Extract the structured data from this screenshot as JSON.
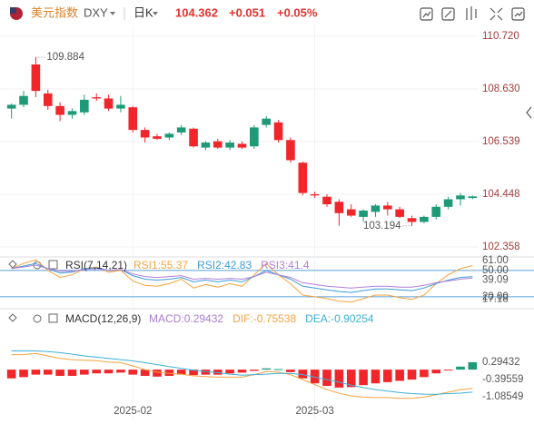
{
  "header": {
    "name": "美元指数",
    "code": "DXY",
    "period": "日K",
    "price": "104.362",
    "change": "+0.051",
    "percent": "+0.05%"
  },
  "chart_data": [
    {
      "type": "candlestick",
      "categories": [
        null,
        null,
        null,
        null,
        null,
        null,
        null,
        null,
        null,
        null,
        "2025-02",
        null,
        null,
        null,
        null,
        null,
        null,
        null,
        null,
        null,
        null,
        null,
        null,
        null,
        null,
        "2025-03",
        null,
        null,
        null,
        null,
        null,
        null,
        null,
        null,
        null,
        null,
        null,
        null,
        null
      ],
      "open": [
        107.85,
        108.0,
        109.6,
        108.45,
        107.95,
        107.6,
        107.7,
        108.3,
        108.25,
        107.85,
        107.9,
        107.0,
        106.75,
        106.7,
        106.9,
        107.05,
        106.3,
        106.55,
        106.3,
        106.45,
        106.35,
        107.2,
        107.3,
        106.6,
        105.7,
        104.45,
        104.35,
        104.15,
        103.85,
        103.55,
        103.75,
        104.0,
        103.85,
        103.5,
        103.35,
        103.55,
        103.95,
        104.25,
        104.3
      ],
      "high": [
        108.05,
        108.55,
        109.884,
        108.6,
        108.1,
        107.85,
        108.4,
        108.45,
        108.4,
        108.35,
        107.95,
        107.1,
        106.85,
        106.9,
        107.2,
        107.1,
        106.55,
        106.65,
        106.6,
        106.55,
        107.2,
        107.55,
        107.4,
        106.7,
        105.75,
        104.55,
        104.45,
        104.25,
        104.05,
        103.85,
        104.05,
        104.15,
        103.95,
        103.6,
        103.6,
        104.05,
        104.35,
        104.5,
        104.4
      ],
      "low": [
        107.45,
        107.9,
        108.3,
        107.8,
        107.35,
        107.45,
        107.6,
        108.15,
        107.75,
        107.7,
        106.9,
        106.5,
        106.6,
        106.6,
        106.8,
        106.3,
        106.2,
        106.25,
        106.2,
        106.25,
        106.25,
        107.1,
        106.5,
        105.7,
        104.4,
        104.3,
        103.95,
        103.2,
        103.55,
        103.35,
        103.55,
        103.6,
        103.5,
        103.194,
        103.3,
        103.45,
        103.85,
        104.0,
        104.25
      ],
      "close": [
        108.0,
        108.35,
        108.55,
        107.95,
        107.6,
        107.75,
        108.2,
        108.25,
        107.85,
        108.0,
        107.0,
        106.7,
        106.65,
        106.85,
        107.1,
        106.35,
        106.5,
        106.3,
        106.5,
        106.3,
        107.1,
        107.45,
        106.6,
        105.8,
        104.5,
        104.4,
        104.05,
        103.7,
        103.6,
        103.8,
        104.0,
        103.85,
        103.55,
        103.35,
        103.55,
        103.95,
        104.25,
        104.4,
        104.362
      ],
      "up_color": "#1e9a78",
      "down_color": "#f0262b",
      "ylim": [
        101.96,
        111.15
      ],
      "yticks": [
        {
          "value": 110.72,
          "label": "110.720"
        },
        {
          "value": 108.63,
          "label": "108.630"
        },
        106.539,
        104.448,
        102.358
      ],
      "grid": true
    },
    {
      "type": "line",
      "title": "RSI(7,14,21)",
      "series": [
        {
          "name": "RSI1",
          "color": "#f5a340",
          "values": [
            52,
            58,
            62,
            50,
            42,
            45,
            52,
            54,
            48,
            50,
            38,
            33,
            32,
            35,
            40,
            30,
            34,
            31,
            35,
            32,
            45,
            58,
            45,
            35,
            22,
            20,
            18,
            15,
            14,
            18,
            22,
            22,
            19,
            17,
            22,
            35,
            45,
            52,
            55.37
          ]
        },
        {
          "name": "RSI2",
          "color": "#3d9ad8",
          "values": [
            52,
            55,
            58,
            52,
            47,
            48,
            52,
            53,
            50,
            51,
            44,
            40,
            39,
            40,
            42,
            37,
            39,
            37,
            39,
            37,
            43,
            50,
            45,
            40,
            32,
            30,
            28,
            26,
            25,
            27,
            29,
            29,
            28,
            27,
            30,
            35,
            39,
            42,
            42.83
          ]
        },
        {
          "name": "RSI3",
          "color": "#b07fd8",
          "values": [
            52,
            54,
            56,
            52,
            49,
            49,
            51,
            52,
            50,
            51,
            46,
            43,
            42,
            43,
            44,
            40,
            41,
            40,
            41,
            40,
            43,
            48,
            45,
            42,
            36,
            34,
            32,
            31,
            30,
            31,
            32,
            32,
            31,
            31,
            33,
            36,
            38,
            40,
            41.4
          ]
        }
      ],
      "ylim": [
        6.5,
        65.3
      ],
      "yticks": [
        {
          "value": 61,
          "label": "61.00"
        },
        {
          "value": 50,
          "label": "50.00"
        },
        39.09,
        17.18,
        {
          "value": 20,
          "label": "20.00"
        }
      ],
      "reference_lines": [
        50,
        20
      ]
    },
    {
      "type": "bar",
      "title": "MACD(12,26,9)",
      "series": [
        {
          "name": "MACD",
          "type": "bar",
          "color": "#a77fd0",
          "up_color": "#1e9a78",
          "down_color": "#f0262b",
          "values": [
            -0.35,
            -0.3,
            -0.2,
            -0.2,
            -0.25,
            -0.25,
            -0.2,
            -0.15,
            -0.15,
            -0.12,
            -0.2,
            -0.25,
            -0.28,
            -0.25,
            -0.2,
            -0.22,
            -0.2,
            -0.2,
            -0.15,
            -0.12,
            -0.05,
            0.05,
            0.02,
            -0.1,
            -0.35,
            -0.55,
            -0.65,
            -0.72,
            -0.7,
            -0.62,
            -0.55,
            -0.5,
            -0.45,
            -0.4,
            -0.3,
            -0.15,
            -0.02,
            0.12,
            0.29432
          ]
        },
        {
          "name": "DIF",
          "type": "line",
          "color": "#f5a340",
          "values": [
            0.6,
            0.6,
            0.65,
            0.55,
            0.45,
            0.4,
            0.38,
            0.36,
            0.3,
            0.28,
            0.15,
            0.0,
            -0.1,
            -0.15,
            -0.18,
            -0.25,
            -0.28,
            -0.3,
            -0.3,
            -0.3,
            -0.2,
            -0.08,
            -0.1,
            -0.2,
            -0.4,
            -0.6,
            -0.8,
            -0.95,
            -1.05,
            -1.1,
            -1.12,
            -1.12,
            -1.15,
            -1.15,
            -1.1,
            -1.0,
            -0.9,
            -0.8,
            -0.75538
          ]
        },
        {
          "name": "DEA",
          "type": "line",
          "color": "#3db0d8",
          "values": [
            0.75,
            0.75,
            0.75,
            0.72,
            0.68,
            0.62,
            0.55,
            0.5,
            0.45,
            0.4,
            0.35,
            0.28,
            0.2,
            0.12,
            0.05,
            -0.02,
            -0.08,
            -0.12,
            -0.18,
            -0.22,
            -0.2,
            -0.18,
            -0.15,
            -0.15,
            -0.2,
            -0.3,
            -0.4,
            -0.5,
            -0.62,
            -0.72,
            -0.8,
            -0.86,
            -0.92,
            -0.96,
            -0.98,
            -0.99,
            -0.96,
            -0.94,
            -0.90254
          ]
        }
      ],
      "ylim": [
        -1.995,
        1.785
      ],
      "yticks": [
        0.29432,
        -0.39559,
        -1.08549
      ]
    }
  ]
}
